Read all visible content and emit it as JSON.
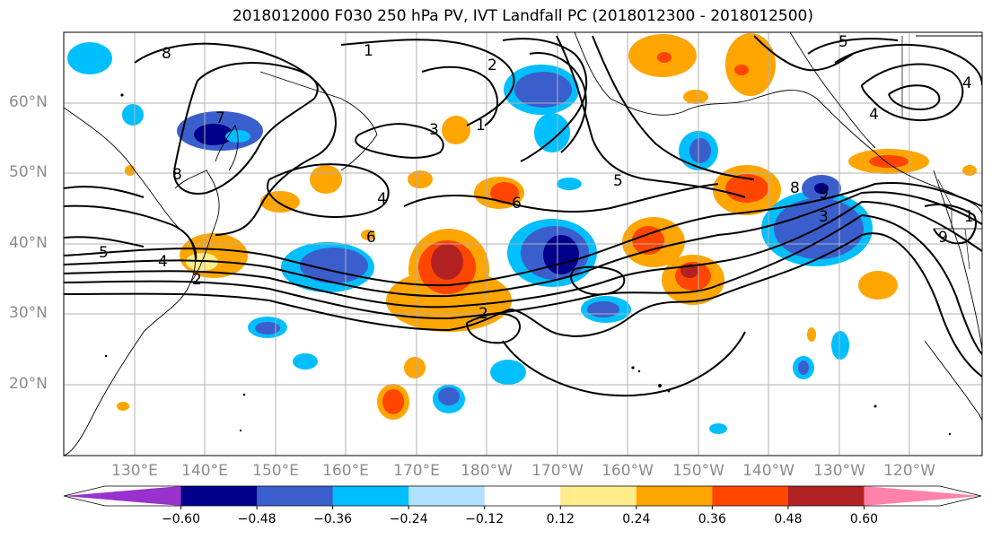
{
  "title": "2018012000 F030 250 hPa PV, IVT Landfall PC (2018012300 - 2018012500)",
  "lat_labels": [
    "60°N",
    "50°N",
    "40°N",
    "30°N",
    "20°N"
  ],
  "lon_labels": [
    "130°E",
    "140°E",
    "150°E",
    "160°E",
    "170°E",
    "180°W",
    "170°W",
    "160°W",
    "150°W",
    "140°W",
    "130°W",
    "120°W"
  ],
  "contour_labels": [
    "1",
    "1",
    "2",
    "3",
    "4",
    "5",
    "6",
    "6",
    "7",
    "8",
    "8",
    "9",
    "9",
    "2",
    "3",
    "4",
    "5",
    "1",
    "2",
    "4",
    "8",
    "5",
    "4"
  ],
  "colorbar": {
    "levels": [
      "−0.60",
      "−0.48",
      "−0.36",
      "−0.24",
      "−0.12",
      "0.12",
      "0.24",
      "0.36",
      "0.48",
      "0.60"
    ],
    "colors": [
      "#9932cc",
      "#00008b",
      "#3a5fcd",
      "#00bfff",
      "#b0e2ff",
      "#ffffff",
      "#ffec8b",
      "#ffa500",
      "#ff4500",
      "#b22222",
      "#ff82ab"
    ]
  }
}
